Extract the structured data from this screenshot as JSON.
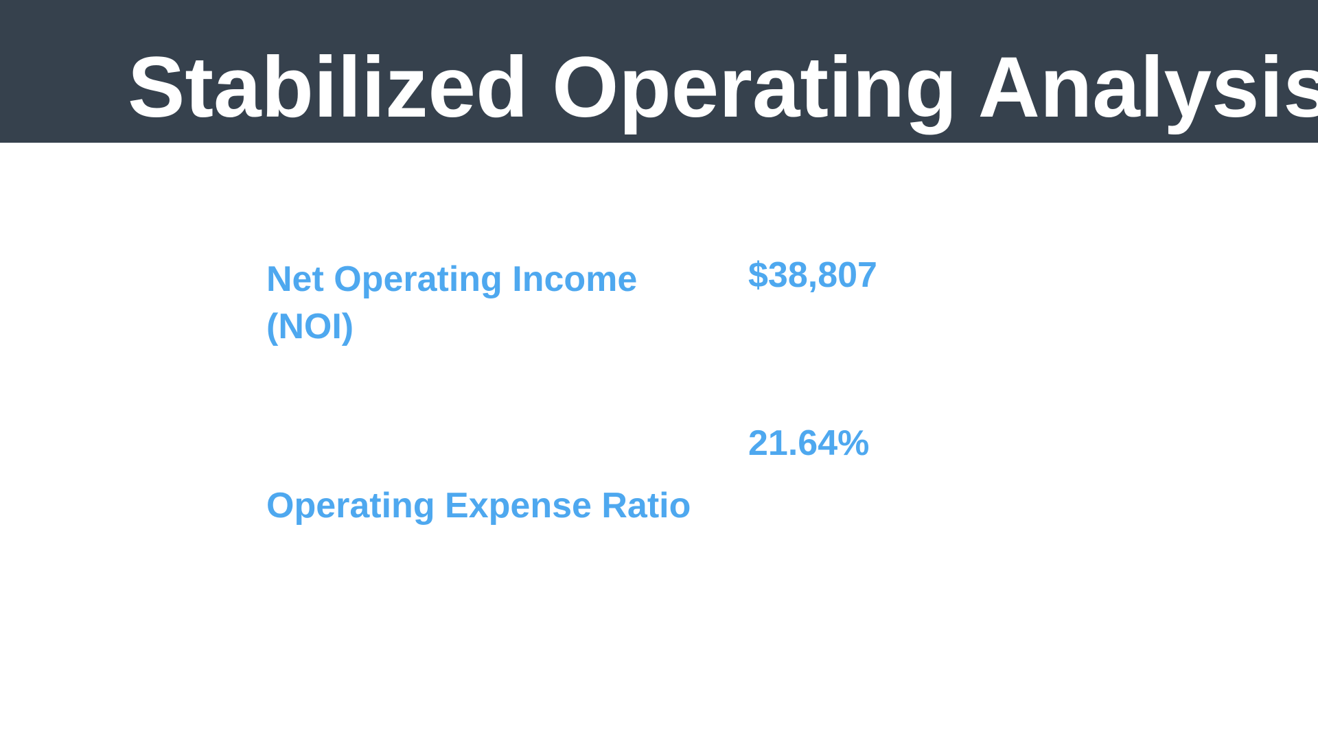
{
  "header": {
    "title": "Stabilized Operating Analysis"
  },
  "metrics": [
    {
      "label": "Net Operating Income (NOI)",
      "value": "$38,807"
    },
    {
      "label": "Operating Expense Ratio",
      "value": "21.64%"
    }
  ]
}
